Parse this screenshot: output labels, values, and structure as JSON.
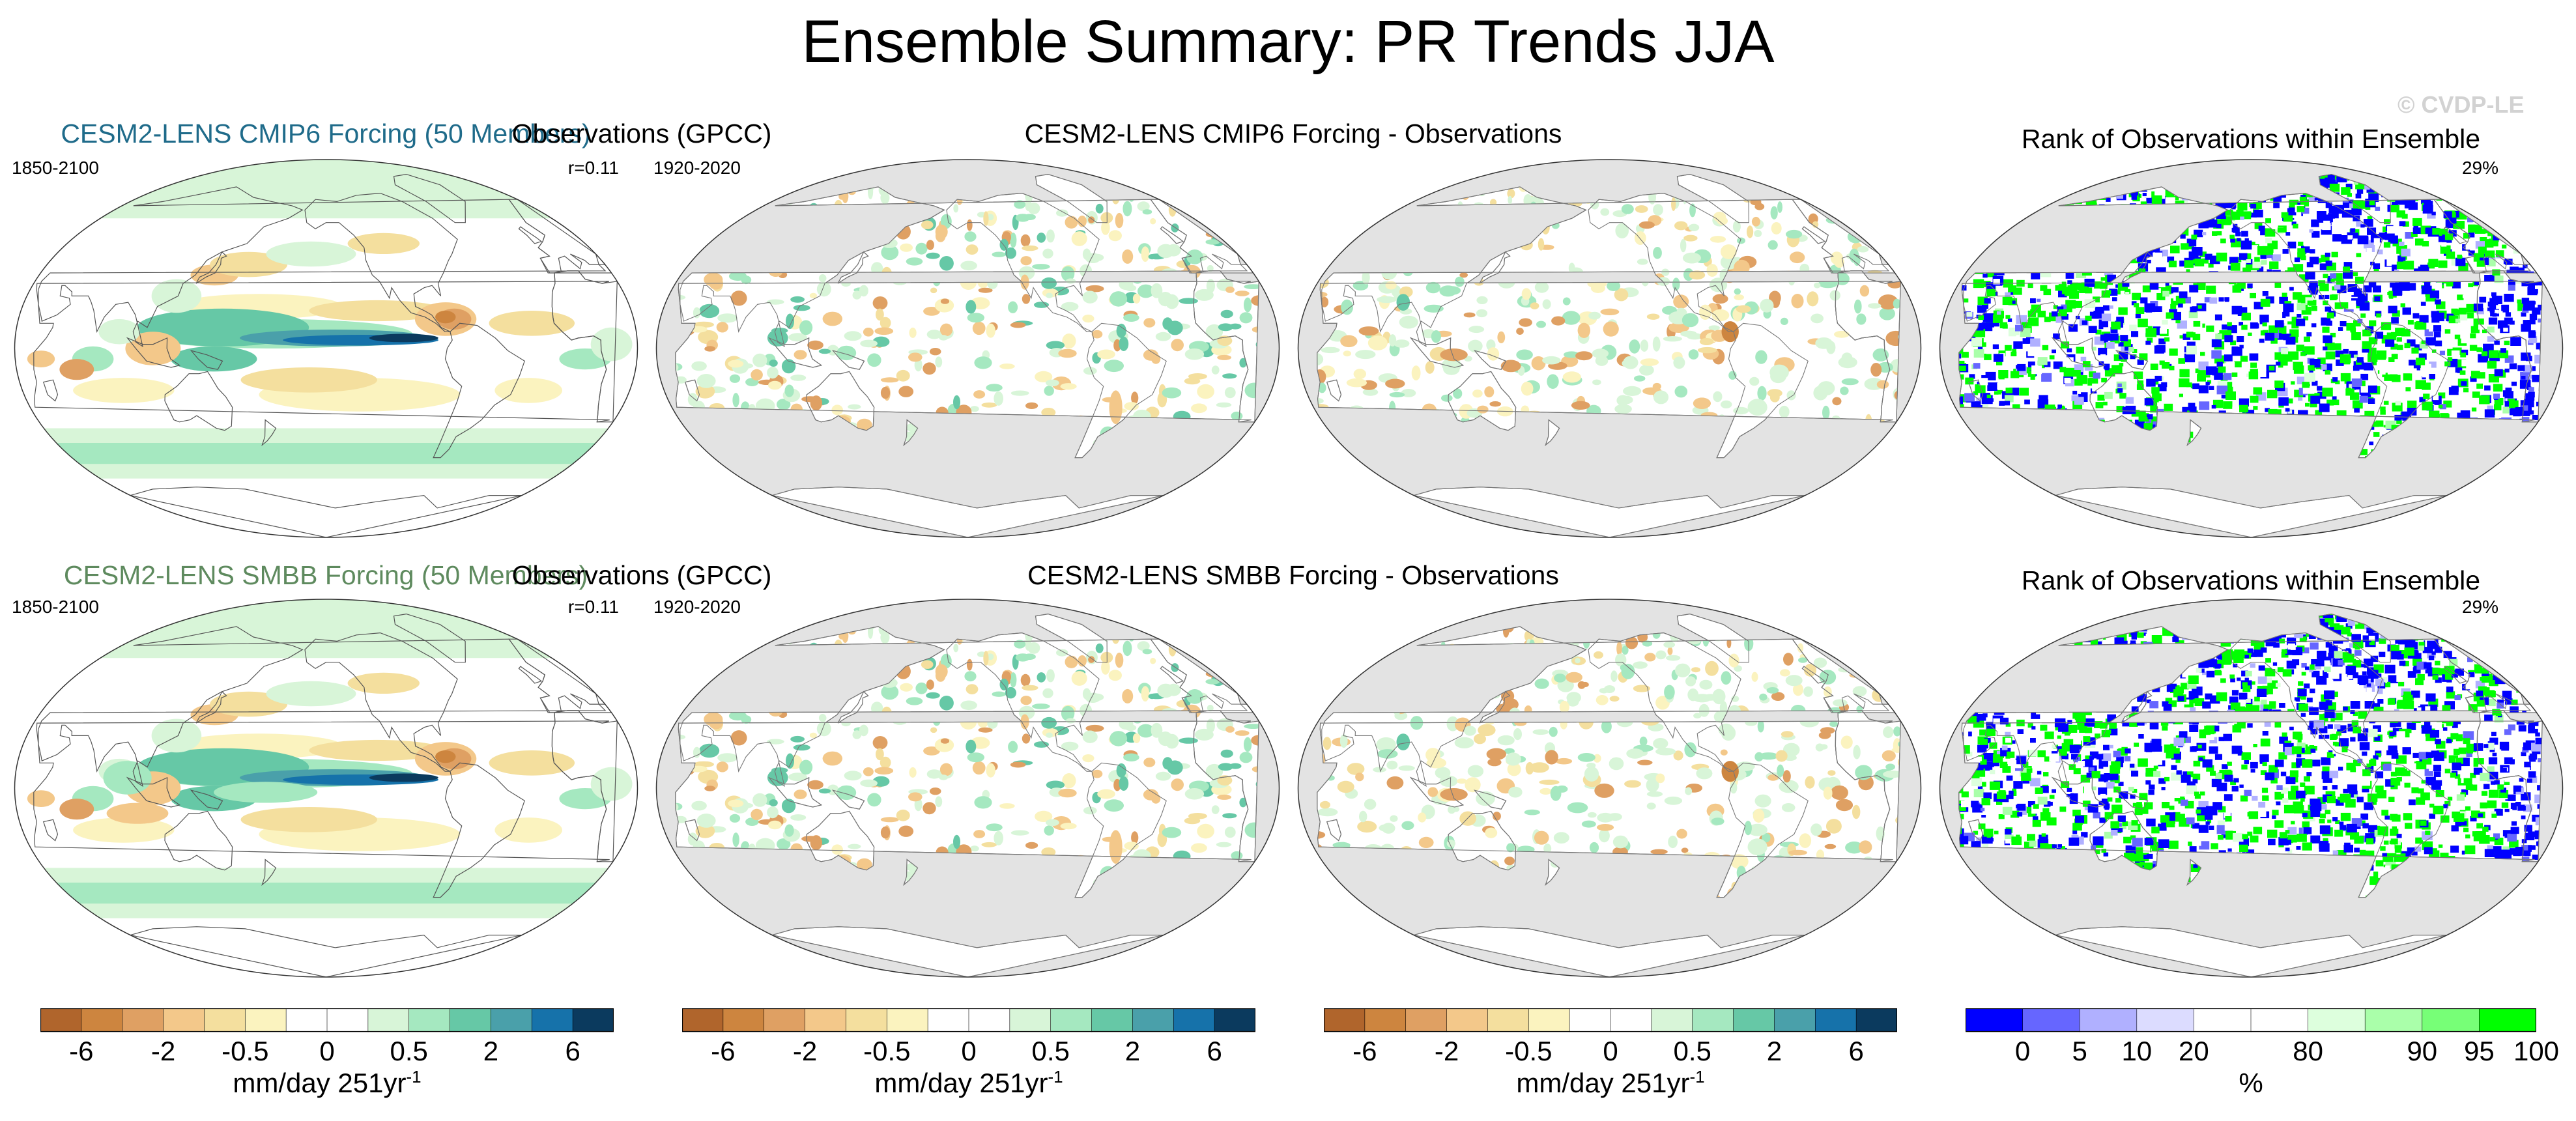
{
  "title": "Ensemble Summary: PR Trends JJA",
  "watermark": "© CVDP-LE",
  "rows": [
    {
      "panels": [
        {
          "title": "CESM2-LENS CMIP6 Forcing (50 Members)",
          "title_color": "#1f6b8a",
          "period": "1850-2100",
          "corner": "r=0.11",
          "type": "model"
        },
        {
          "title": "Observations (GPCC)",
          "title_color": "#000000",
          "period": "1920-2020",
          "corner": "",
          "type": "obs"
        },
        {
          "title": "CESM2-LENS CMIP6 Forcing - Observations",
          "title_color": "#000000",
          "period": "",
          "corner": "",
          "type": "diff"
        },
        {
          "title": "Rank of Observations within Ensemble",
          "title_color": "#000000",
          "period": "",
          "corner": "29%",
          "type": "rank"
        }
      ]
    },
    {
      "panels": [
        {
          "title": "CESM2-LENS SMBB Forcing (50 Members)",
          "title_color": "#5e8a5e",
          "period": "1850-2100",
          "corner": "r=0.11",
          "type": "model"
        },
        {
          "title": "Observations (GPCC)",
          "title_color": "#000000",
          "period": "1920-2020",
          "corner": "",
          "type": "obs"
        },
        {
          "title": "CESM2-LENS SMBB Forcing - Observations",
          "title_color": "#000000",
          "period": "",
          "corner": "",
          "type": "diff"
        },
        {
          "title": "Rank of Observations within Ensemble",
          "title_color": "#000000",
          "period": "",
          "corner": "29%",
          "type": "rank"
        }
      ]
    }
  ],
  "colorbars": [
    {
      "label": "mm/day 251yr",
      "label_sup": "-1",
      "ticks": [
        "-6",
        "-2",
        "-0.5",
        "0",
        "0.5",
        "2",
        "6"
      ]
    },
    {
      "label": "mm/day 251yr",
      "label_sup": "-1",
      "ticks": [
        "-6",
        "-2",
        "-0.5",
        "0",
        "0.5",
        "2",
        "6"
      ]
    },
    {
      "label": "mm/day 251yr",
      "label_sup": "-1",
      "ticks": [
        "-6",
        "-2",
        "-0.5",
        "0",
        "0.5",
        "2",
        "6"
      ]
    },
    {
      "label": "%",
      "label_sup": "",
      "ticks": [
        "0",
        "5",
        "10",
        "20",
        "80",
        "90",
        "95",
        "100"
      ]
    }
  ],
  "colors": {
    "trend_scale": [
      "#b0652c",
      "#cd853f",
      "#dfa063",
      "#f3c88a",
      "#f4df9e",
      "#fbf3bf",
      "#ffffff",
      "#ffffff",
      "#d8f5d8",
      "#a5e8c0",
      "#66c8a6",
      "#4aa0aa",
      "#1672aa",
      "#0b3a5e"
    ],
    "rank_scale": [
      "#0000ff",
      "#6666ff",
      "#b0b0ff",
      "#dcdcff",
      "#ffffff",
      "#ffffff",
      "#ddffdd",
      "#aaffaa",
      "#77ff77",
      "#00ff00"
    ],
    "land": "#ffffff",
    "masked_ocean": "#e3e3e3",
    "coast": "#555555"
  }
}
